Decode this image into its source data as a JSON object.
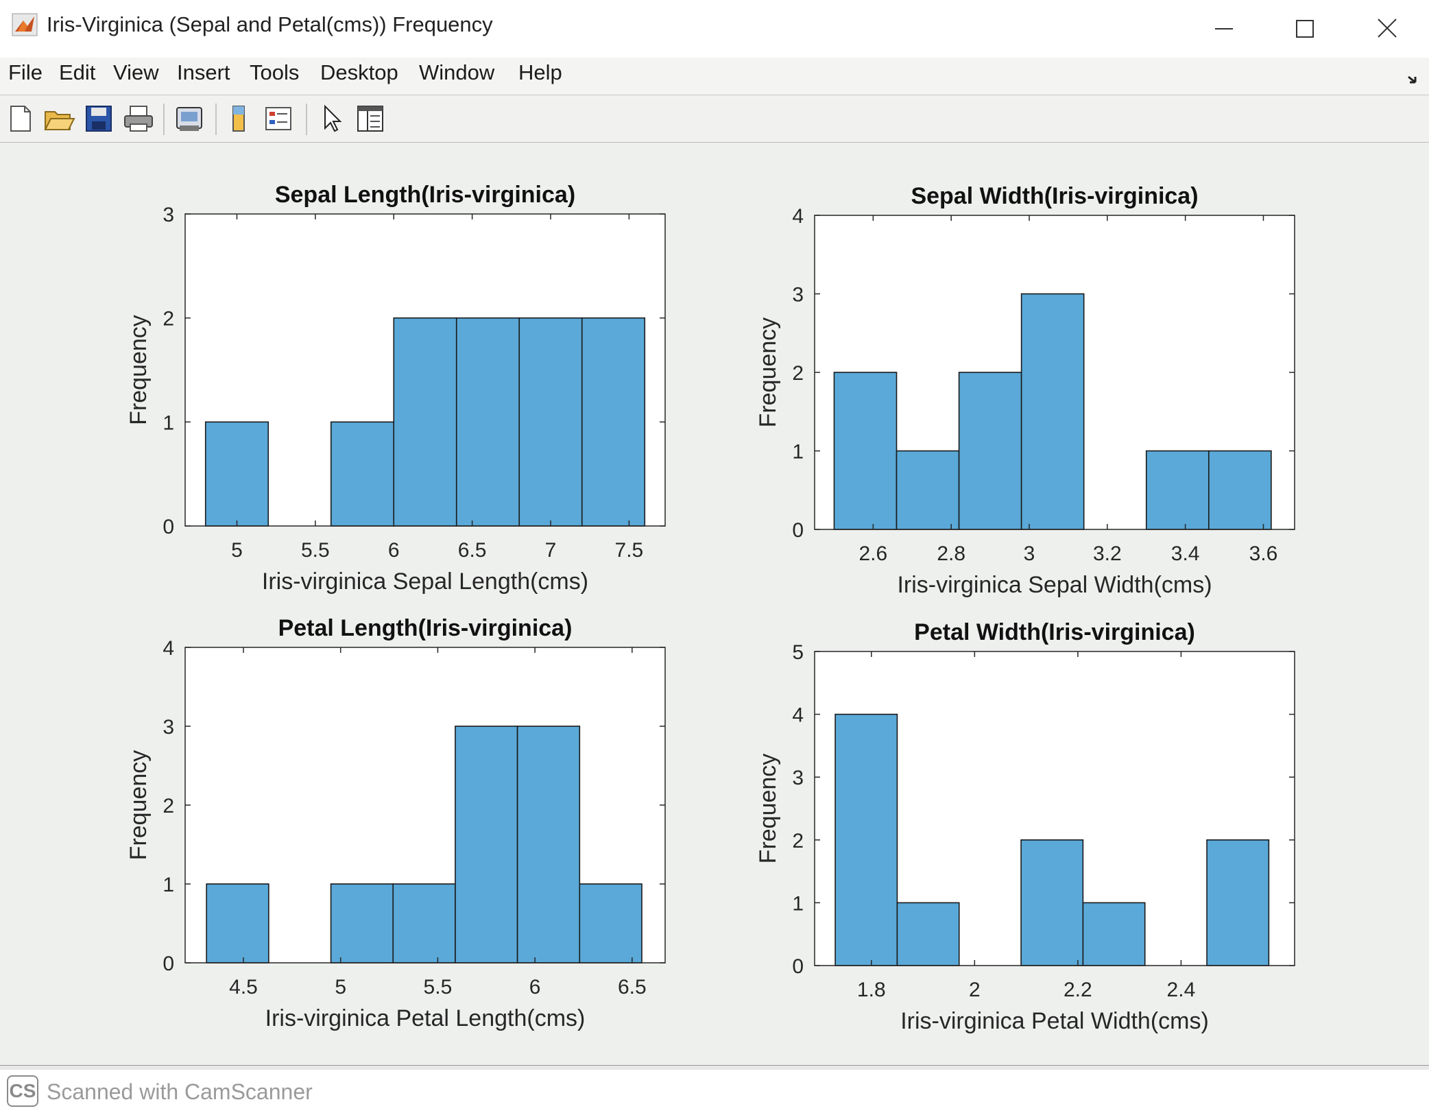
{
  "window": {
    "title": "Iris-Virginica (Sepal and Petal(cms)) Frequency",
    "icon": "matlab-logo-icon",
    "controls": [
      "minimize-icon",
      "maximize-icon",
      "close-icon"
    ]
  },
  "menubar": {
    "items": [
      "File",
      "Edit",
      "View",
      "Insert",
      "Tools",
      "Desktop",
      "Window",
      "Help"
    ]
  },
  "toolbar": {
    "buttons": [
      "new-figure-icon",
      "open-file-icon",
      "save-icon",
      "print-icon",
      "link-plot-icon",
      "colorbar-icon",
      "legend-icon",
      "pointer-icon",
      "property-editor-icon"
    ]
  },
  "footer": {
    "logo": "CS",
    "text": "Scanned with CamScanner"
  },
  "colors": {
    "bar_fill": "#5aa9d8",
    "bar_edge": "#1a1a1a",
    "axes_bg": "#ffffff"
  },
  "chart_data": [
    {
      "type": "bar",
      "title": "Sepal Length(Iris-virginica)",
      "xlabel": "Iris-virginica Sepal Length(cms)",
      "ylabel": "Frequency",
      "xlim": [
        4.67,
        7.73
      ],
      "ylim": [
        0,
        3
      ],
      "xticks": [
        "5",
        "5.5",
        "6",
        "6.5",
        "7",
        "7.5"
      ],
      "xtick_values": [
        5,
        5.5,
        6,
        6.5,
        7,
        7.5
      ],
      "yticks": [
        "0",
        "1",
        "2",
        "3"
      ],
      "bin_edges": [
        4.8,
        5.2,
        5.6,
        6.0,
        6.4,
        6.8,
        7.2,
        7.6
      ],
      "values": [
        1,
        0,
        1,
        2,
        2,
        2,
        2
      ]
    },
    {
      "type": "bar",
      "title": "Sepal Width(Iris-virginica)",
      "xlabel": "Iris-virginica Sepal Width(cms)",
      "ylabel": "Frequency",
      "xlim": [
        2.45,
        3.68
      ],
      "ylim": [
        0,
        4
      ],
      "xticks": [
        "2.6",
        "2.8",
        "3",
        "3.2",
        "3.4",
        "3.6"
      ],
      "xtick_values": [
        2.6,
        2.8,
        3.0,
        3.2,
        3.4,
        3.6
      ],
      "yticks": [
        "0",
        "1",
        "2",
        "3",
        "4"
      ],
      "bin_edges": [
        2.5,
        2.66,
        2.82,
        2.98,
        3.14,
        3.3,
        3.46,
        3.62
      ],
      "values": [
        2,
        1,
        2,
        3,
        0,
        1,
        1
      ]
    },
    {
      "type": "bar",
      "title": "Petal Length(Iris-virginica)",
      "xlabel": "Iris-virginica Petal Length(cms)",
      "ylabel": "Frequency",
      "xlim": [
        4.2,
        6.67
      ],
      "ylim": [
        0,
        4
      ],
      "xticks": [
        "4.5",
        "5",
        "5.5",
        "6",
        "6.5"
      ],
      "xtick_values": [
        4.5,
        5.0,
        5.5,
        6.0,
        6.5
      ],
      "yticks": [
        "0",
        "1",
        "2",
        "3",
        "4"
      ],
      "bin_edges": [
        4.31,
        4.63,
        4.95,
        5.27,
        5.59,
        5.91,
        6.23,
        6.55
      ],
      "values": [
        1,
        0,
        1,
        1,
        3,
        3,
        1
      ]
    },
    {
      "type": "bar",
      "title": "Petal Width(Iris-virginica)",
      "xlabel": "Iris-virginica Petal Width(cms)",
      "ylabel": "Frequency",
      "xlim": [
        1.69,
        2.62
      ],
      "ylim": [
        0,
        5
      ],
      "xticks": [
        "1.8",
        "2",
        "2.2",
        "2.4"
      ],
      "xtick_values": [
        1.8,
        2.0,
        2.2,
        2.4
      ],
      "yticks": [
        "0",
        "1",
        "2",
        "3",
        "4",
        "5"
      ],
      "bin_edges": [
        1.73,
        1.85,
        1.97,
        2.09,
        2.21,
        2.33,
        2.45,
        2.57
      ],
      "values": [
        4,
        1,
        0,
        2,
        1,
        0,
        2
      ]
    }
  ]
}
